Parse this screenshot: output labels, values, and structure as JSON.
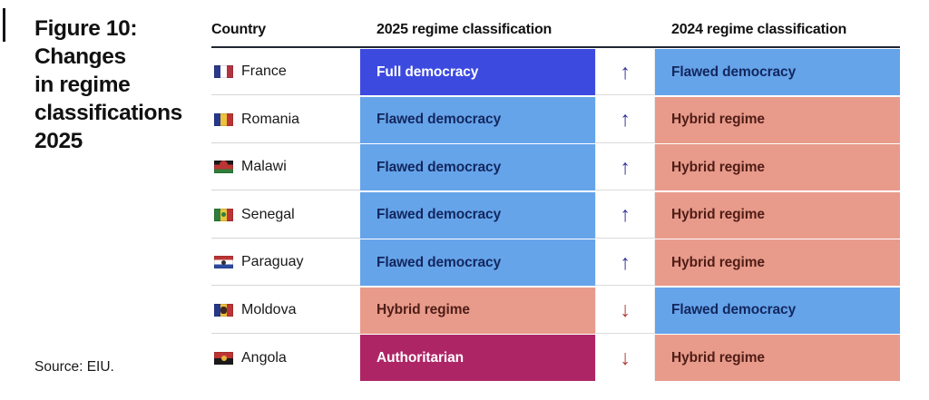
{
  "figure": {
    "title": "Figure 10:\nChanges\nin regime\nclassifications\n2025",
    "source": "Source: EIU."
  },
  "table": {
    "headers": {
      "country": "Country",
      "c2025": "2025 regime classification",
      "c2024": "2024 regime classification"
    },
    "arrows": {
      "up": "↑",
      "down": "↓"
    },
    "rows": [
      {
        "country": "France",
        "flag": "france",
        "c2025": "Full democracy",
        "direction": "up",
        "c2024": "Flawed democracy"
      },
      {
        "country": "Romania",
        "flag": "romania",
        "c2025": "Flawed democracy",
        "direction": "up",
        "c2024": "Hybrid regime"
      },
      {
        "country": "Malawi",
        "flag": "malawi",
        "c2025": "Flawed democracy",
        "direction": "up",
        "c2024": "Hybrid regime"
      },
      {
        "country": "Senegal",
        "flag": "senegal",
        "c2025": "Flawed democracy",
        "direction": "up",
        "c2024": "Hybrid regime"
      },
      {
        "country": "Paraguay",
        "flag": "paraguay",
        "c2025": "Flawed democracy",
        "direction": "up",
        "c2024": "Hybrid regime"
      },
      {
        "country": "Moldova",
        "flag": "moldova",
        "c2025": "Hybrid regime",
        "direction": "down",
        "c2024": "Flawed democracy"
      },
      {
        "country": "Angola",
        "flag": "angola",
        "c2025": "Authoritarian",
        "direction": "down",
        "c2024": "Hybrid regime"
      }
    ]
  },
  "colors": {
    "full_democracy": "#3c4ae0",
    "flawed_democracy": "#66a4ea",
    "hybrid_regime": "#e89b8b",
    "authoritarian": "#ae2566",
    "text_on_dark": "#ffffff",
    "text_on_blue": "#12275e",
    "text_on_salmon": "#4f1d16",
    "arrow_up": "#32309c",
    "arrow_down": "#b6392f",
    "header_rule": "#202634"
  },
  "chart_data": {
    "type": "table",
    "title": "Figure 10: Changes in regime classifications 2025",
    "source": "Source: EIU.",
    "columns": [
      "Country",
      "2025 regime classification",
      "Change direction",
      "2024 regime classification"
    ],
    "rows": [
      [
        "France",
        "Full democracy",
        "up",
        "Flawed democracy"
      ],
      [
        "Romania",
        "Flawed democracy",
        "up",
        "Hybrid regime"
      ],
      [
        "Malawi",
        "Flawed democracy",
        "up",
        "Hybrid regime"
      ],
      [
        "Senegal",
        "Flawed democracy",
        "up",
        "Hybrid regime"
      ],
      [
        "Paraguay",
        "Flawed democracy",
        "up",
        "Hybrid regime"
      ],
      [
        "Moldova",
        "Hybrid regime",
        "down",
        "Flawed democracy"
      ],
      [
        "Angola",
        "Authoritarian",
        "down",
        "Hybrid regime"
      ]
    ],
    "legend_colors": {
      "Full democracy": "#3c4ae0",
      "Flawed democracy": "#66a4ea",
      "Hybrid regime": "#e89b8b",
      "Authoritarian": "#ae2566"
    }
  }
}
